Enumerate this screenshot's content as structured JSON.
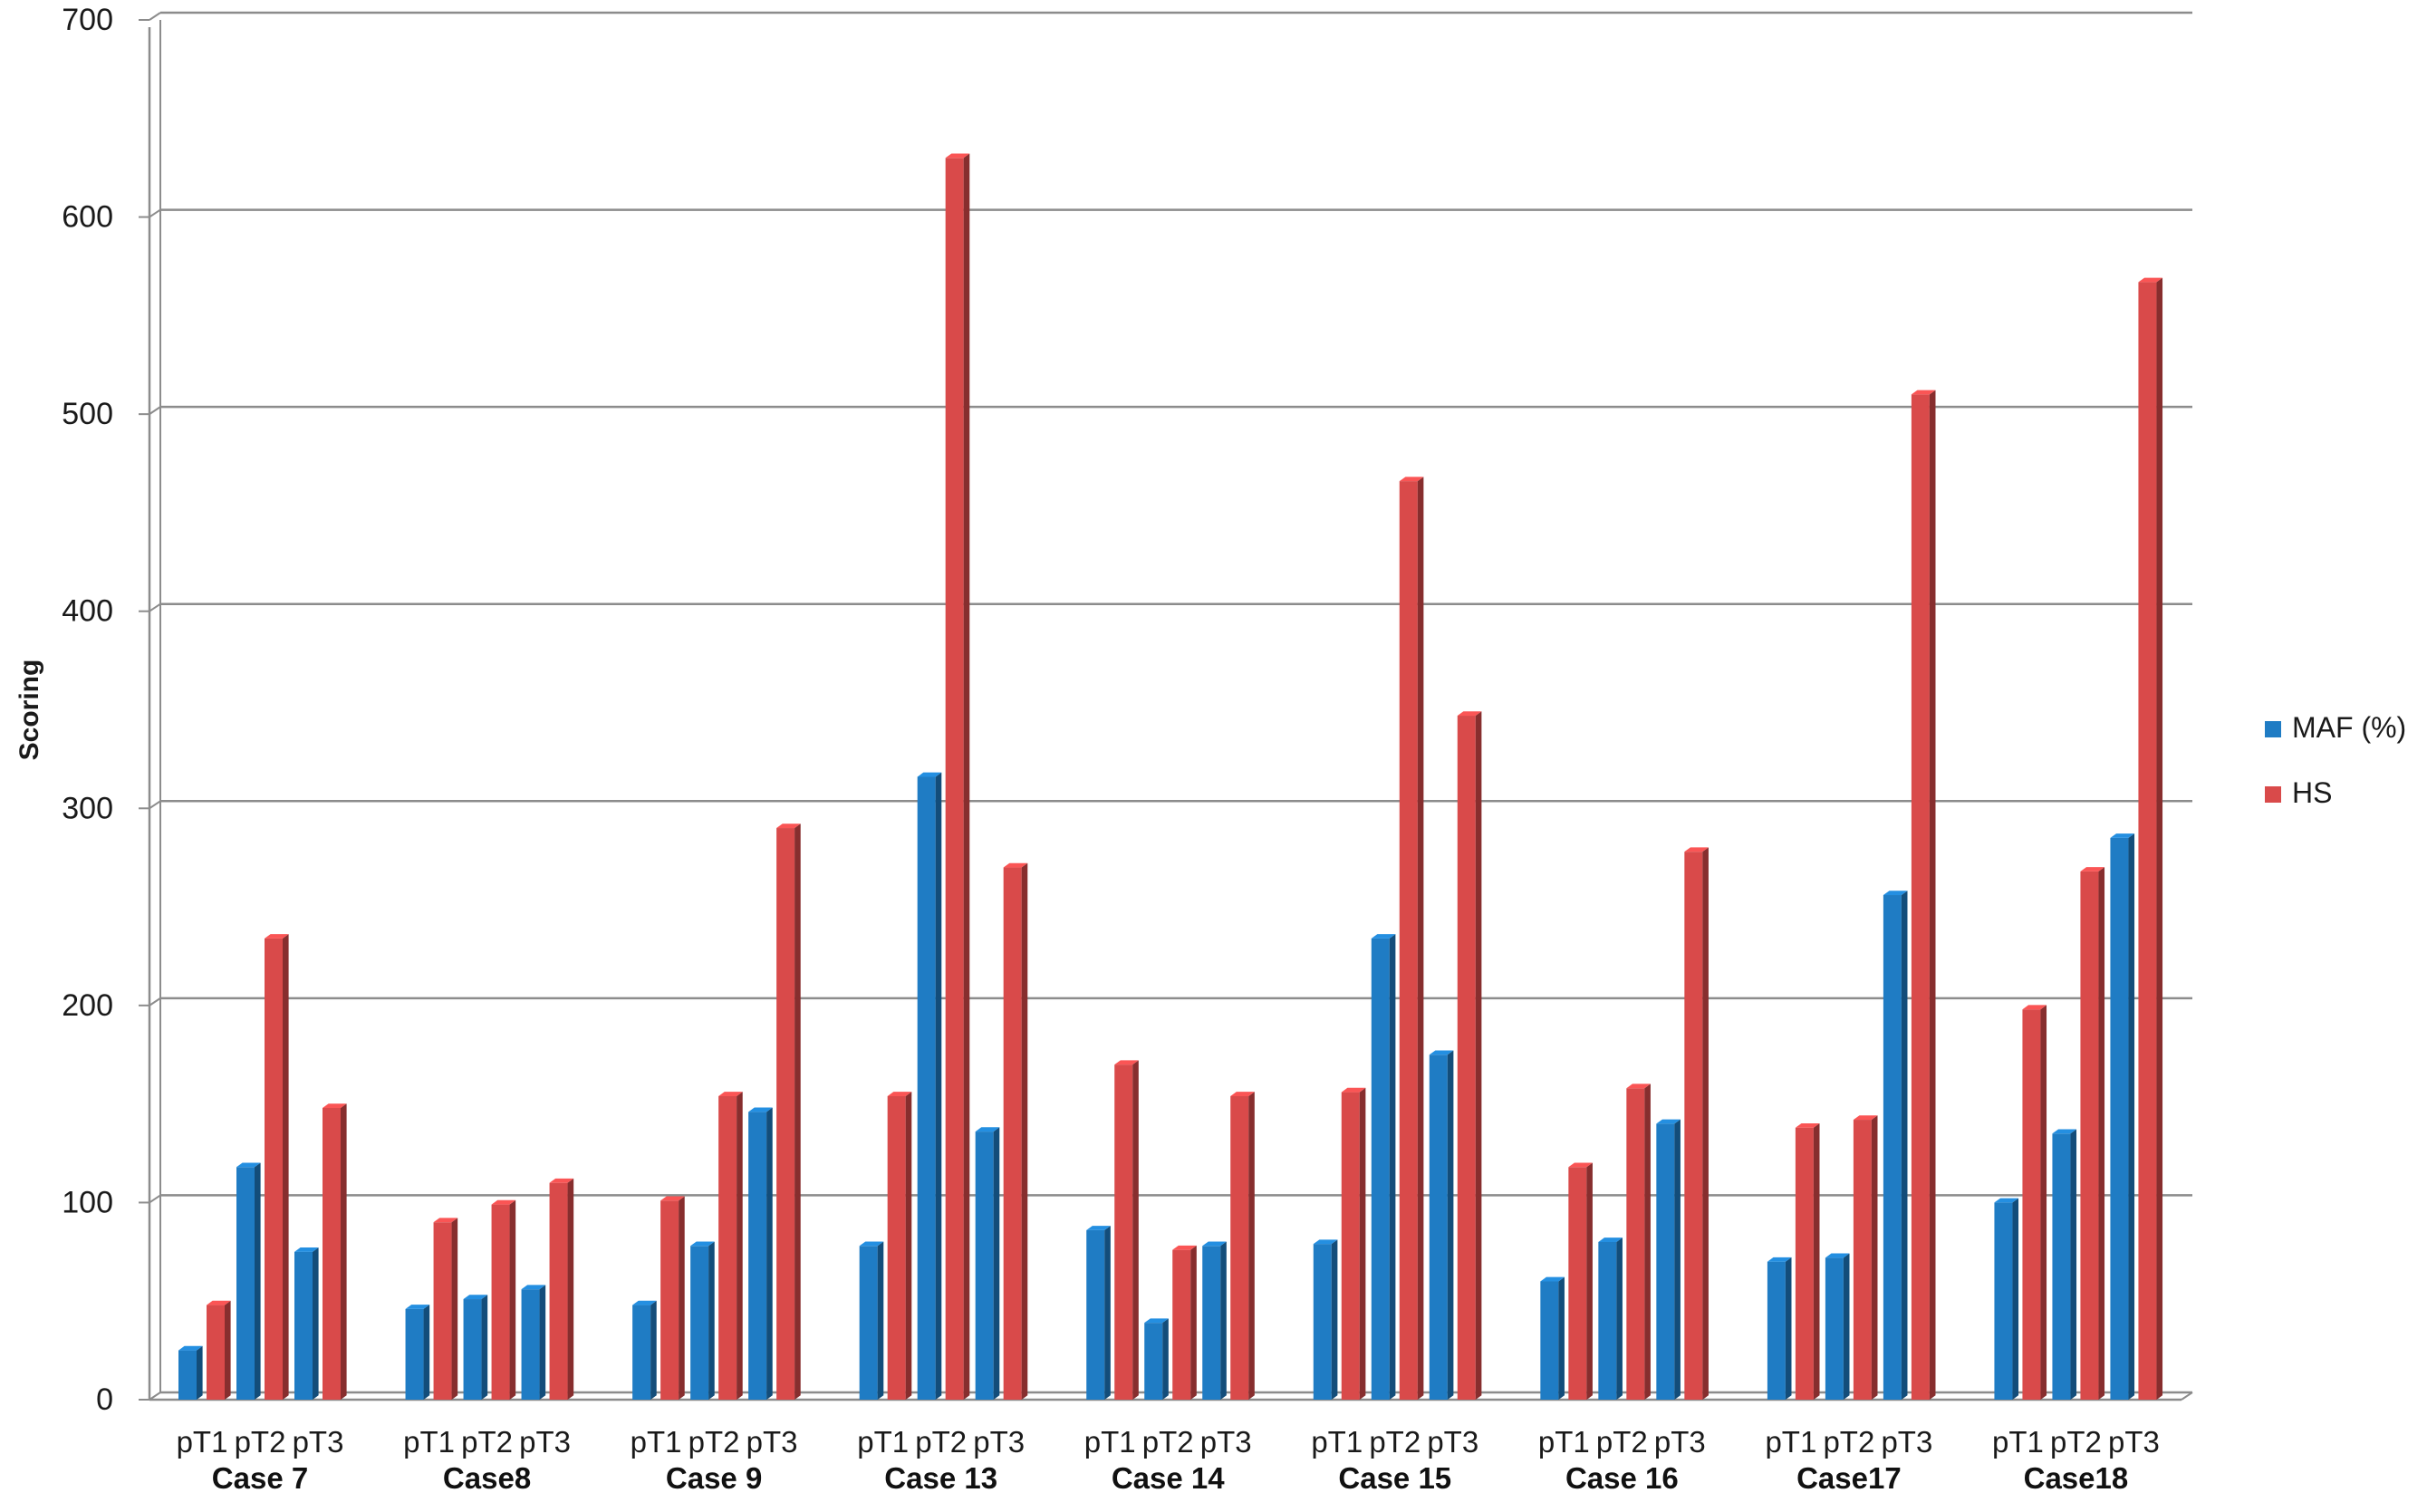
{
  "chart_data": {
    "type": "bar",
    "title": "",
    "xlabel": "",
    "ylabel": "Scoring",
    "ylim": [
      0,
      700
    ],
    "yticks": [
      0,
      100,
      200,
      300,
      400,
      500,
      600,
      700
    ],
    "grid": true,
    "legend_position": "right",
    "groups": [
      "Case 7",
      "Case8",
      "Case 9",
      "Case 13",
      "Case 14",
      "Case 15",
      "Case 16",
      "Case17",
      "Case18"
    ],
    "subcategories": [
      "pT1",
      "pT2",
      "pT3"
    ],
    "series": [
      {
        "name": "MAF (%)",
        "color": "#1f7cc4",
        "values": [
          [
            25,
            118,
            75
          ],
          [
            46,
            51,
            56
          ],
          [
            48,
            78,
            146
          ],
          [
            78,
            316,
            136
          ],
          [
            86,
            39,
            78
          ],
          [
            79,
            234,
            175
          ],
          [
            60,
            80,
            140
          ],
          [
            70,
            72,
            256
          ],
          [
            100,
            135,
            285
          ]
        ]
      },
      {
        "name": "HS",
        "color": "#d94a4a",
        "values": [
          [
            48,
            234,
            148
          ],
          [
            90,
            99,
            110
          ],
          [
            101,
            154,
            290
          ],
          [
            154,
            630,
            270
          ],
          [
            170,
            76,
            154
          ],
          [
            156,
            466,
            347
          ],
          [
            118,
            158,
            278
          ],
          [
            138,
            142,
            510
          ],
          [
            198,
            268,
            567
          ]
        ]
      }
    ]
  }
}
